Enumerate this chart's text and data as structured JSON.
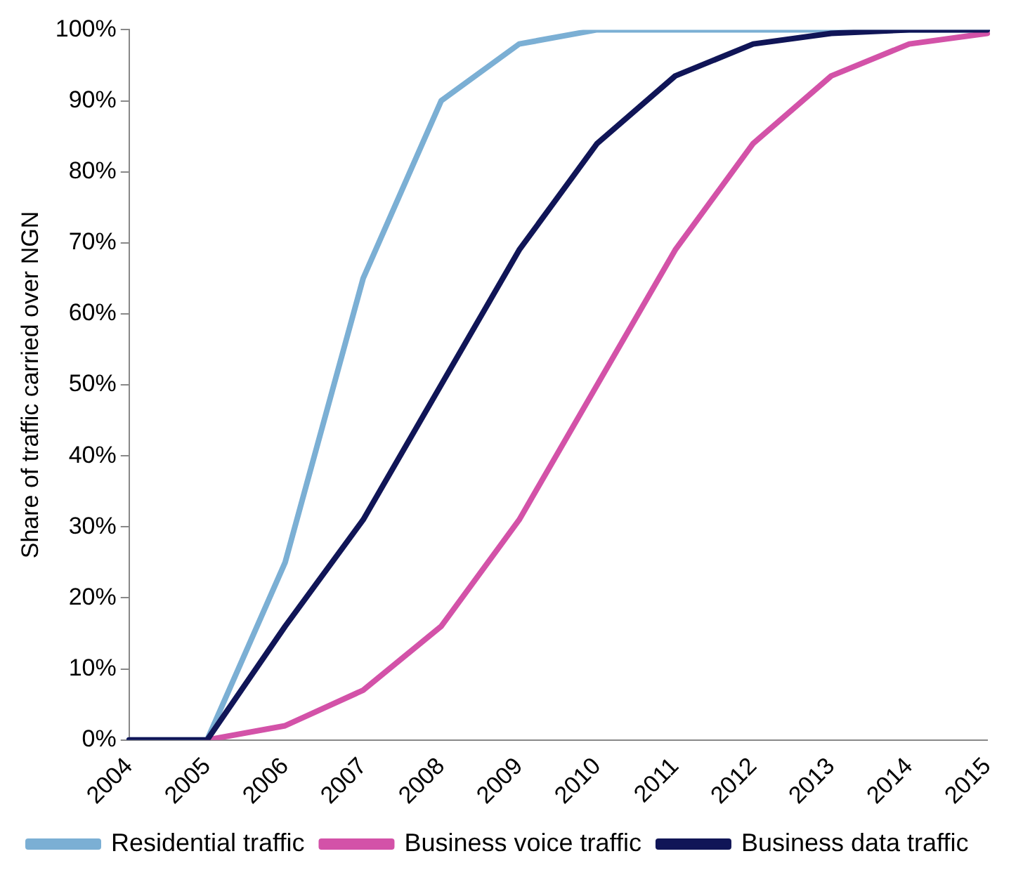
{
  "chart_data": {
    "type": "line",
    "ylabel": "Share of traffic carried over NGN",
    "categories": [
      "2004",
      "2005",
      "2006",
      "2007",
      "2008",
      "2009",
      "2010",
      "2011",
      "2012",
      "2013",
      "2014",
      "2015"
    ],
    "series": [
      {
        "name": "Residential traffic",
        "color": "#7bafd4",
        "values": [
          0,
          0,
          25,
          65,
          90,
          98,
          100,
          100,
          100,
          100,
          100,
          100
        ]
      },
      {
        "name": "Business voice traffic",
        "color": "#d352a8",
        "values": [
          null,
          0,
          2,
          7,
          16,
          31,
          50,
          69,
          84,
          93.5,
          98,
          99.5
        ]
      },
      {
        "name": "Business data traffic",
        "color": "#101557",
        "values": [
          0,
          0,
          16,
          31,
          50,
          69,
          84,
          93.5,
          98,
          99.5,
          100,
          100
        ]
      }
    ],
    "ylim": [
      0,
      100
    ],
    "yticks": [
      {
        "value": 0,
        "label": "0%"
      },
      {
        "value": 10,
        "label": "10%"
      },
      {
        "value": 20,
        "label": "20%"
      },
      {
        "value": 30,
        "label": "30%"
      },
      {
        "value": 40,
        "label": "40%"
      },
      {
        "value": 50,
        "label": "50%"
      },
      {
        "value": 60,
        "label": "60%"
      },
      {
        "value": 70,
        "label": "70%"
      },
      {
        "value": 80,
        "label": "80%"
      },
      {
        "value": 90,
        "label": "90%"
      },
      {
        "value": 100,
        "label": "100%"
      }
    ],
    "grid": false,
    "legend": "bottom",
    "marker": "none",
    "line_style": "solid"
  }
}
